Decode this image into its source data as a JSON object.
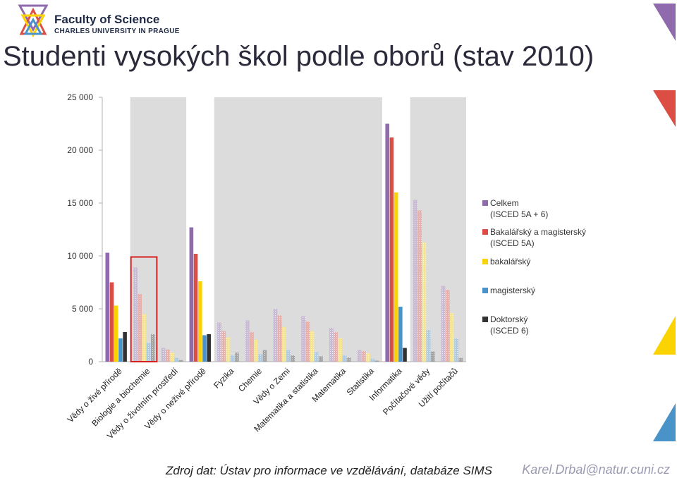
{
  "header": {
    "faculty": "Faculty of Science",
    "university": "CHARLES UNIVERSITY IN PRAGUE"
  },
  "slide": {
    "title": "Studenti vysokých škol podle oborů (stav 2010)",
    "source": "Zdroj dat: Ústav pro informace ve vzdělávání, databáze SIMS",
    "email": "Karel.Drbal@natur.cuni.cz"
  },
  "colors": {
    "celkem": "#8f6aac",
    "bakmag": "#dc4e43",
    "bak": "#fbd300",
    "mag": "#4a93c9",
    "dok": "#333333",
    "band": "#dcdcdc",
    "highlight": "#d42020"
  },
  "chart_data": {
    "type": "bar",
    "title": "",
    "xlabel": "",
    "ylabel": "",
    "ylim": [
      0,
      25000
    ],
    "yticks": [
      0,
      5000,
      10000,
      15000,
      20000,
      25000
    ],
    "ytick_labels": [
      "0",
      "5 000",
      "10 000",
      "15 000",
      "20 000",
      "25 000"
    ],
    "legend_position": "right",
    "categories": [
      "Vědy o živé přírodě",
      "Biologie a biochemie",
      "Vědy o životním prostředí",
      "Vědy o neživé přírodě",
      "Fyzika",
      "Chemie",
      "Vědy o Zemi",
      "Matematika a statistika",
      "Matematika",
      "Statistika",
      "Informatika",
      "Počítačové vědy",
      "Užití počítačů"
    ],
    "series": [
      {
        "name": "Celkem (ISCED 5A + 6)",
        "legend_lines": [
          "Celkem",
          "(ISCED 5A + 6)"
        ],
        "color_key": "celkem",
        "values": [
          10300,
          8900,
          1300,
          12700,
          3700,
          3900,
          5000,
          4300,
          3200,
          1100,
          22500,
          15300,
          7200
        ]
      },
      {
        "name": "Bakalářský a magisterský (ISCED 5A)",
        "legend_lines": [
          "Bakalářský a magisterský",
          "(ISCED 5A)"
        ],
        "color_key": "bakmag",
        "values": [
          7500,
          6400,
          1150,
          10200,
          2900,
          2800,
          4400,
          3800,
          2800,
          1000,
          21200,
          14300,
          6800
        ]
      },
      {
        "name": "bakalářský",
        "legend_lines": [
          "bakalářský"
        ],
        "color_key": "bak",
        "values": [
          5300,
          4500,
          850,
          7600,
          2300,
          2100,
          3300,
          2900,
          2200,
          800,
          16000,
          11300,
          4600
        ]
      },
      {
        "name": "magisterský",
        "legend_lines": [
          "magisterský"
        ],
        "color_key": "mag",
        "values": [
          2200,
          1800,
          350,
          2500,
          600,
          700,
          1100,
          900,
          600,
          250,
          5200,
          3000,
          2200
        ]
      },
      {
        "name": "Doktorský (ISCED 6)",
        "legend_lines": [
          "Doktorský",
          "(ISCED 6)"
        ],
        "color_key": "dok",
        "values": [
          2800,
          2600,
          150,
          2600,
          850,
          1100,
          600,
          500,
          400,
          100,
          1300,
          950,
          350
        ]
      }
    ],
    "group_bands": [
      {
        "from": 1,
        "to": 2
      },
      {
        "from": 4,
        "to": 9
      },
      {
        "from": 11,
        "to": 12
      }
    ],
    "faded_categories": [
      1,
      2,
      4,
      5,
      6,
      7,
      8,
      9,
      11,
      12
    ],
    "highlighted_category": 1
  }
}
